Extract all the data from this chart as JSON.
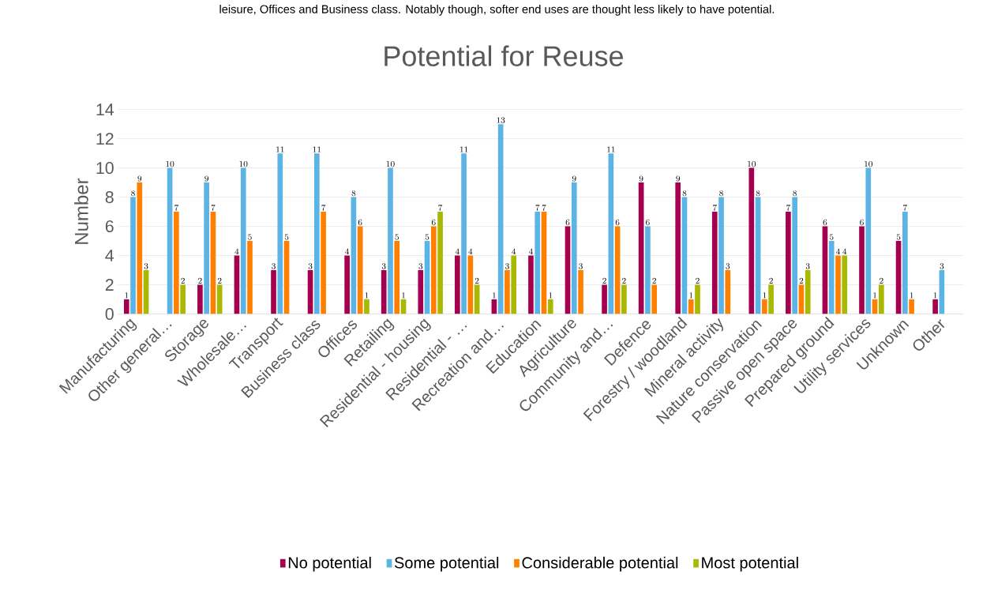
{
  "chart_data": {
    "type": "bar",
    "title": "Potential for Reuse",
    "ylabel": "Number",
    "annotations": [
      "leisure, Offices and Business class. Notably though, softer end uses are thought less likely to have potential."
    ],
    "categories": [
      "Manufacturing",
      "Other general…",
      "Storage",
      "Wholesale…",
      "Transport",
      "Business class",
      "Offices",
      "Retailing",
      "Residential - housing",
      "Residential - …",
      "Recreation and…",
      "Education",
      "Agriculture",
      "Community and…",
      "Defence",
      "Forestry / woodland",
      "Mineral activity",
      "Nature conservation",
      "Passive open space",
      "Prepared ground",
      "Utility services",
      "Unknown",
      "Other"
    ],
    "series": [
      {
        "name": "No potential",
        "color": "#a50050",
        "values": [
          1,
          null,
          2,
          4,
          3,
          3,
          4,
          3,
          3,
          4,
          1,
          4,
          6,
          2,
          9,
          9,
          7,
          10,
          7,
          6,
          6,
          5,
          1
        ]
      },
      {
        "name": "Some potential",
        "color": "#5bb4e5",
        "values": [
          8,
          10,
          9,
          10,
          11,
          11,
          8,
          10,
          5,
          11,
          13,
          7,
          9,
          11,
          6,
          8,
          8,
          8,
          8,
          5,
          10,
          7,
          3
        ]
      },
      {
        "name": "Considerable potential",
        "color": "#ff8000",
        "values": [
          9,
          7,
          7,
          5,
          5,
          7,
          6,
          5,
          6,
          4,
          3,
          7,
          3,
          6,
          2,
          1,
          3,
          1,
          2,
          4,
          1,
          1,
          null
        ]
      },
      {
        "name": "Most potential",
        "color": "#a9b800",
        "values": [
          3,
          2,
          2,
          null,
          null,
          null,
          1,
          1,
          7,
          2,
          4,
          1,
          null,
          2,
          null,
          2,
          null,
          2,
          3,
          4,
          2,
          null,
          null
        ]
      }
    ],
    "ylim": [
      0,
      14
    ],
    "yticks": [
      0,
      2,
      4,
      6,
      8,
      10,
      12,
      14
    ],
    "grid": "y",
    "legend": "bottom",
    "data_labels": true
  }
}
